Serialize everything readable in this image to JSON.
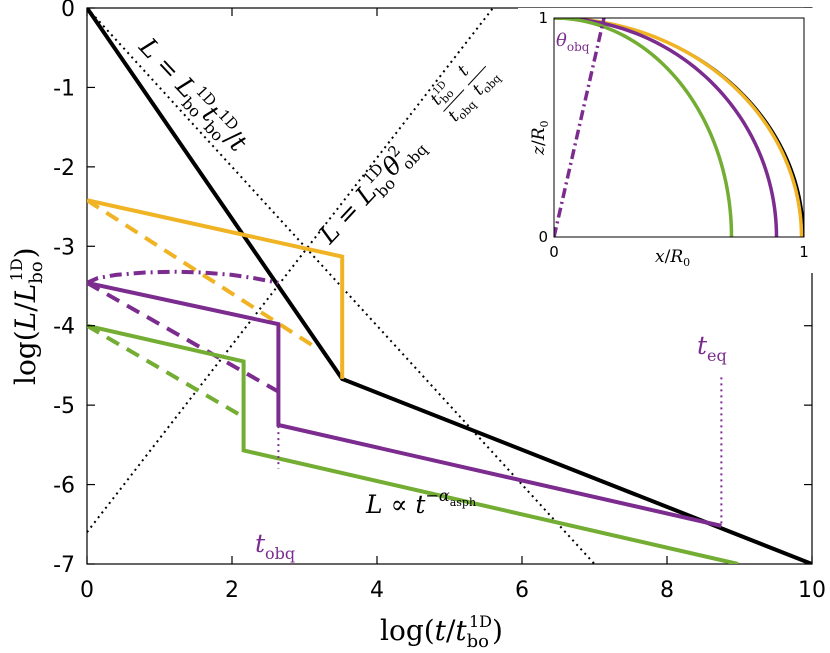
{
  "chart_data": [
    {
      "type": "line",
      "xlabel": "log(t/t_bo^1D)",
      "ylabel": "log(L/L_bo^1D)",
      "xlim": [
        0,
        10
      ],
      "ylim": [
        -7,
        0
      ],
      "xticks": [
        "0",
        "2",
        "4",
        "6",
        "8",
        "10"
      ],
      "yticks": [
        "0",
        "-1",
        "-2",
        "-3",
        "-4",
        "-5",
        "-6",
        "-7"
      ],
      "grid": false,
      "series": [
        {
          "color": "#000000",
          "style": "solid",
          "points": [
            [
              0,
              0
            ],
            [
              3.52,
              -4.67
            ],
            [
              10,
              -7
            ]
          ]
        },
        {
          "color": "#000000",
          "style": "dotted",
          "points": [
            [
              0,
              0
            ],
            [
              7,
              -7
            ]
          ]
        },
        {
          "color": "#000000",
          "style": "dotted",
          "points": [
            [
              0,
              -6.6
            ],
            [
              5.6,
              0
            ]
          ]
        },
        {
          "color": "#f0b323",
          "style": "solid",
          "points": [
            [
              0,
              -2.42
            ],
            [
              3.52,
              -3.13
            ],
            [
              3.52,
              -4.67
            ]
          ]
        },
        {
          "color": "#f0b323",
          "style": "dashed",
          "points": [
            [
              0,
              -2.42
            ],
            [
              3.2,
              -4.3
            ]
          ]
        },
        {
          "color": "#7b2c8e",
          "style": "solid",
          "points": [
            [
              0,
              -3.46
            ],
            [
              2.64,
              -3.98
            ],
            [
              2.64,
              -5.25
            ],
            [
              8.75,
              -6.52
            ]
          ]
        },
        {
          "color": "#7b2c8e",
          "style": "dashed",
          "points": [
            [
              0,
              -3.46
            ],
            [
              2.64,
              -4.83
            ]
          ]
        },
        {
          "color": "#7b2c8e",
          "style": "dashdot",
          "points": [
            [
              0,
              -3.46
            ],
            [
              0.15,
              -3.4
            ],
            [
              0.4,
              -3.36
            ],
            [
              0.8,
              -3.33
            ],
            [
              1.2,
              -3.32
            ],
            [
              1.6,
              -3.33
            ],
            [
              2.0,
              -3.36
            ],
            [
              2.3,
              -3.4
            ],
            [
              2.64,
              -3.46
            ]
          ]
        },
        {
          "color": "#73ad33",
          "style": "solid",
          "points": [
            [
              0,
              -4.0
            ],
            [
              2.16,
              -4.45
            ],
            [
              2.16,
              -5.57
            ],
            [
              8.98,
              -7.0
            ]
          ]
        },
        {
          "color": "#73ad33",
          "style": "dashed",
          "points": [
            [
              0,
              -4.0
            ],
            [
              2.16,
              -5.15
            ]
          ]
        }
      ],
      "annotations": [
        {
          "text": "L = L_bo^1D t_bo^1D / t",
          "x": 1.35,
          "y": -1.2
        },
        {
          "text": "L = L_bo^1D θ_obq^2 (t_bo^1D / t_obq)(t / t_obq)",
          "x": 3.8,
          "y": -1.85
        },
        {
          "text": "L ∝ t^-α_asph",
          "x": 4.3,
          "y": -6.3
        },
        {
          "text": "t_obq",
          "x": 2.64,
          "y": -6.1
        },
        {
          "text": "t_eq",
          "x": 8.75,
          "y": -4.3
        }
      ],
      "vlines": [
        {
          "x": 2.64,
          "from": -3.98,
          "to": -5.8,
          "color": "#7b2c8e",
          "style": "dotted"
        },
        {
          "x": 8.75,
          "from": -4.65,
          "to": -6.52,
          "color": "#7b2c8e",
          "style": "dotted"
        }
      ]
    },
    {
      "type": "line",
      "name": "inset",
      "xlabel": "x/R_0",
      "ylabel": "z/R_0",
      "xlim": [
        0,
        1
      ],
      "ylim": [
        0,
        1
      ],
      "xticks": [
        "0",
        "1"
      ],
      "yticks": [
        "0",
        "1"
      ],
      "curves": [
        {
          "color": "#000000",
          "a": 1.0
        },
        {
          "color": "#f0b323",
          "a": 0.99
        },
        {
          "color": "#7b2c8e",
          "a": 0.89
        },
        {
          "color": "#73ad33",
          "a": 0.71
        }
      ],
      "obq_line": {
        "color": "#7b2c8e",
        "style": "dashdot",
        "points": [
          [
            0,
            0
          ],
          [
            0.2,
            1.0
          ]
        ]
      },
      "annotation": "θ_obq"
    }
  ]
}
